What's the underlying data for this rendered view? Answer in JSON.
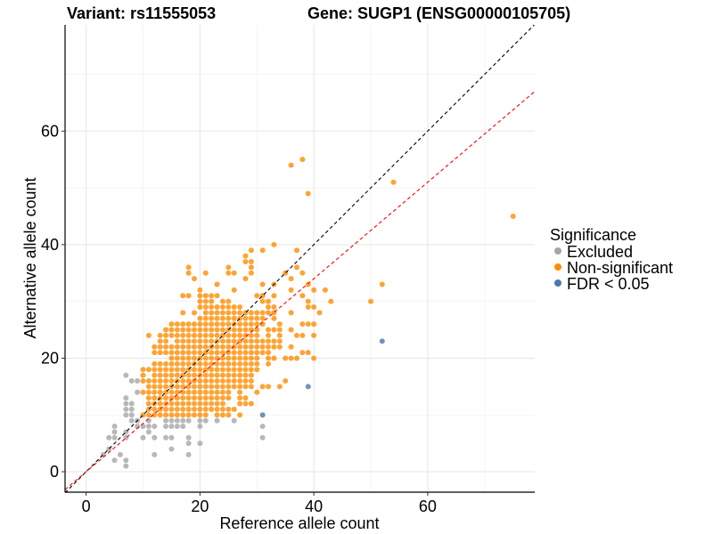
{
  "chart_data": {
    "type": "scatter",
    "title_left": "Variant: rs11555053",
    "title_right": "Gene: SUGP1 (ENSG00000105705)",
    "xlabel": "Reference allele count",
    "ylabel": "Alternative allele count",
    "xlim": [
      -3.7,
      78.8
    ],
    "ylim": [
      -3.6,
      78.7
    ],
    "xticks": [
      0,
      20,
      40,
      60
    ],
    "yticks": [
      0,
      20,
      40,
      60
    ],
    "minor_grid": [
      10,
      30,
      50,
      70
    ],
    "grid": true,
    "reference_lines": [
      {
        "name": "identity",
        "slope": 1.0,
        "color": "#000000",
        "style": "dashed"
      },
      {
        "name": "fit",
        "slope": 0.85,
        "color": "#FF0000",
        "style": "dashed"
      }
    ],
    "legend": {
      "title": "Significance",
      "placement": "right",
      "entries": [
        {
          "label": "Excluded",
          "color": "#A6A6A6"
        },
        {
          "label": "Non-significant",
          "color": "#FF8C00"
        },
        {
          "label": "FDR < 0.05",
          "color": "#4A78B0"
        }
      ]
    },
    "series": [
      {
        "name": "Excluded",
        "rows": [
          {
            "y": 1,
            "x": [
              7
            ]
          },
          {
            "y": 2,
            "x": [
              5,
              7
            ]
          },
          {
            "y": 3,
            "x": [
              3,
              6,
              12,
              18
            ]
          },
          {
            "y": 4,
            "x": [
              4,
              15
            ]
          },
          {
            "y": 5,
            "x": [
              18,
              20
            ]
          },
          {
            "y": 6,
            "x": [
              4,
              5,
              7,
              10,
              12,
              14,
              15,
              18,
              31
            ]
          },
          {
            "y": 7,
            "x": [
              5,
              7,
              11
            ]
          },
          {
            "y": 8,
            "x": [
              5,
              9,
              10,
              11,
              12,
              14,
              15,
              16,
              17,
              20,
              31
            ]
          },
          {
            "y": 9,
            "x": [
              8,
              9,
              11,
              14,
              15,
              16,
              17,
              18,
              20,
              21,
              23,
              26
            ]
          },
          {
            "y": 10,
            "x": [
              7,
              8
            ]
          },
          {
            "y": 11,
            "x": [
              7,
              8
            ]
          },
          {
            "y": 12,
            "x": [
              7,
              8
            ]
          },
          {
            "y": 13,
            "x": [
              7
            ]
          },
          {
            "y": 14,
            "x": [
              9
            ]
          },
          {
            "y": 16,
            "x": [
              8,
              9
            ]
          },
          {
            "y": 17,
            "x": [
              7
            ]
          }
        ]
      },
      {
        "name": "Non-significant",
        "rows": [
          {
            "y": 10,
            "x": [
              10,
              11,
              12,
              13,
              14,
              15,
              16,
              17,
              18,
              19,
              20,
              21,
              23,
              24,
              25,
              27
            ]
          },
          {
            "y": 11,
            "x": [
              11,
              12,
              13,
              14,
              15,
              16,
              17,
              18,
              19,
              20,
              21,
              22,
              23,
              24,
              25,
              26
            ]
          },
          {
            "y": 12,
            "x": [
              11,
              12,
              13,
              14,
              15,
              16,
              17,
              18,
              19,
              20,
              21,
              22,
              23,
              24,
              27,
              28,
              29
            ]
          },
          {
            "y": 13,
            "x": [
              11,
              12,
              13,
              14,
              15,
              16,
              17,
              18,
              19,
              20,
              21,
              22,
              23,
              24,
              25,
              27,
              28
            ]
          },
          {
            "y": 14,
            "x": [
              10,
              11,
              12,
              13,
              14,
              15,
              16,
              17,
              18,
              19,
              20,
              21,
              22,
              23,
              24,
              25,
              27,
              30
            ]
          },
          {
            "y": 15,
            "x": [
              11,
              12,
              13,
              14,
              15,
              16,
              17,
              18,
              19,
              20,
              21,
              22,
              23,
              24,
              25,
              26,
              27,
              28,
              29,
              31,
              32,
              34
            ]
          },
          {
            "y": 16,
            "x": [
              10,
              11,
              12,
              13,
              14,
              15,
              16,
              17,
              18,
              19,
              20,
              21,
              22,
              23,
              24,
              25,
              26,
              27,
              28,
              29,
              35
            ]
          },
          {
            "y": 17,
            "x": [
              10,
              12,
              13,
              14,
              15,
              16,
              17,
              18,
              19,
              20,
              21,
              22,
              23,
              24,
              25,
              26,
              27,
              28,
              29
            ]
          },
          {
            "y": 18,
            "x": [
              10,
              11,
              12,
              13,
              14,
              15,
              16,
              17,
              18,
              19,
              20,
              21,
              22,
              23,
              24,
              25,
              26,
              27,
              28,
              29,
              30
            ]
          },
          {
            "y": 19,
            "x": [
              12,
              13,
              14,
              15,
              16,
              17,
              18,
              19,
              20,
              21,
              22,
              23,
              24,
              25,
              26,
              27,
              28,
              29,
              30,
              32
            ]
          },
          {
            "y": 20,
            "x": [
              15,
              16,
              17,
              18,
              19,
              20,
              21,
              22,
              23,
              24,
              25,
              26,
              27,
              28,
              29,
              30,
              32,
              33,
              35,
              36,
              37,
              40
            ]
          },
          {
            "y": 21,
            "x": [
              12,
              13,
              14,
              15,
              16,
              17,
              18,
              19,
              20,
              21,
              22,
              23,
              24,
              25,
              26,
              27,
              28,
              29,
              30,
              31,
              32,
              38,
              39
            ]
          },
          {
            "y": 22,
            "x": [
              12,
              13,
              14,
              15,
              16,
              17,
              18,
              19,
              20,
              21,
              22,
              23,
              24,
              25,
              26,
              27,
              28,
              29,
              30,
              31,
              32,
              33,
              34,
              36
            ]
          },
          {
            "y": 23,
            "x": [
              13,
              14,
              16,
              17,
              18,
              19,
              20,
              21,
              22,
              23,
              24,
              25,
              26,
              27,
              28,
              29,
              30,
              31,
              32,
              33,
              34
            ]
          },
          {
            "y": 24,
            "x": [
              11,
              13,
              14,
              15,
              16,
              17,
              18,
              19,
              20,
              21,
              22,
              23,
              24,
              25,
              26,
              27,
              28,
              29,
              30,
              32,
              34,
              37,
              38,
              40
            ]
          },
          {
            "y": 25,
            "x": [
              14,
              15,
              16,
              17,
              18,
              19,
              20,
              21,
              22,
              23,
              24,
              25,
              26,
              27,
              28,
              29,
              30,
              32,
              33,
              34,
              36
            ]
          },
          {
            "y": 26,
            "x": [
              15,
              16,
              17,
              18,
              19,
              20,
              21,
              22,
              23,
              24,
              25,
              26,
              27,
              28,
              29,
              30,
              31,
              34,
              38,
              39,
              40
            ]
          },
          {
            "y": 27,
            "x": [
              20,
              21,
              22,
              23,
              24,
              25,
              26,
              27,
              28,
              29,
              30,
              31,
              33
            ]
          },
          {
            "y": 28,
            "x": [
              17,
              19,
              21,
              22,
              23,
              24,
              25,
              26,
              27,
              28,
              29,
              30,
              31,
              32,
              33,
              36,
              41
            ]
          },
          {
            "y": 29,
            "x": [
              20,
              21,
              22,
              23,
              24,
              25,
              26,
              27,
              32,
              33,
              39,
              40
            ]
          },
          {
            "y": 30,
            "x": [
              20,
              21,
              22,
              24,
              25,
              31,
              32,
              39,
              43,
              50
            ]
          },
          {
            "y": 31,
            "x": [
              17,
              18,
              20,
              21,
              22,
              23,
              30,
              31,
              33,
              38
            ]
          },
          {
            "y": 32,
            "x": [
              20,
              26,
              36,
              40,
              42
            ]
          },
          {
            "y": 33,
            "x": [
              23,
              31,
              33,
              39,
              52
            ]
          },
          {
            "y": 34,
            "x": [
              19,
              28,
              36
            ]
          },
          {
            "y": 35,
            "x": [
              18,
              21,
              25,
              26,
              29,
              35,
              38
            ]
          },
          {
            "y": 36,
            "x": [
              18,
              25,
              29,
              37
            ]
          },
          {
            "y": 37,
            "x": [
              28,
              29
            ]
          },
          {
            "y": 38,
            "x": [
              28
            ]
          },
          {
            "y": 39,
            "x": [
              29,
              31,
              37
            ]
          },
          {
            "y": 40,
            "x": [
              33
            ]
          },
          {
            "y": 45,
            "x": [
              75
            ]
          },
          {
            "y": 49,
            "x": [
              39
            ]
          },
          {
            "y": 51,
            "x": [
              54
            ]
          },
          {
            "y": 54,
            "x": [
              36
            ]
          },
          {
            "y": 55,
            "x": [
              38
            ]
          }
        ]
      },
      {
        "name": "FDR < 0.05",
        "rows": [
          {
            "y": 10,
            "x": [
              31
            ]
          },
          {
            "y": 15,
            "x": [
              39
            ]
          },
          {
            "y": 23,
            "x": [
              52
            ]
          }
        ]
      }
    ]
  }
}
